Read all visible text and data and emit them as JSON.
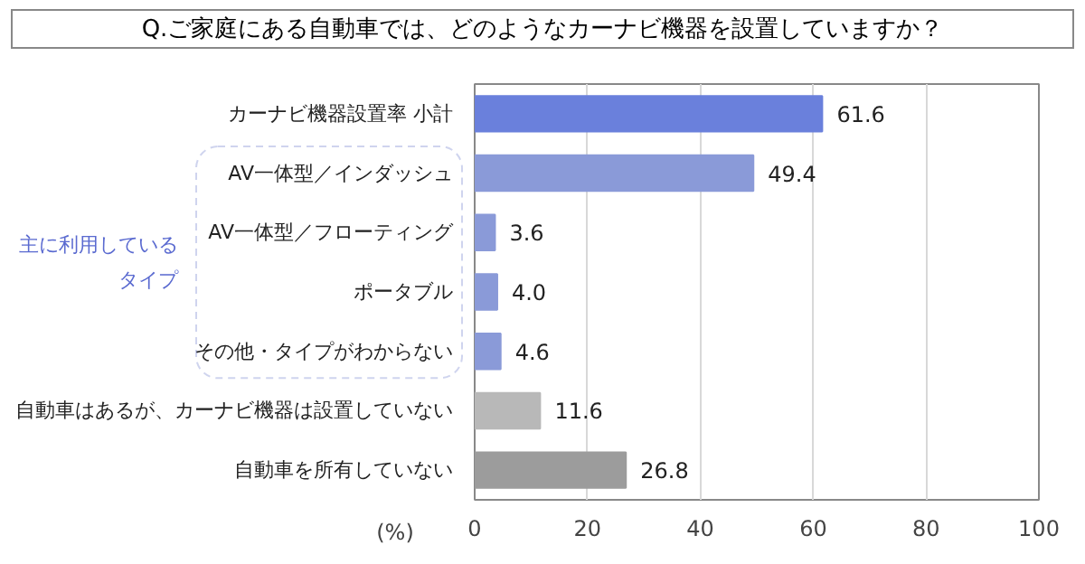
{
  "chart_data": {
    "type": "bar",
    "orientation": "horizontal",
    "title": "Q.ご家庭にある自動車では、どのようなカーナビ機器を設置していますか？",
    "categories": [
      "カーナビ機器設置率 小計",
      "AV一体型／インダッシュ",
      "AV一体型／フローティング",
      "ポータブル",
      "その他・タイプがわからない",
      "自動車はあるが、カーナビ機器は設置していない",
      "自動車を所有していない"
    ],
    "values": [
      61.6,
      49.4,
      3.6,
      4.0,
      4.6,
      11.6,
      26.8
    ],
    "colors": [
      "#6a80dc",
      "#8a9ad8",
      "#8a9ad8",
      "#8a9ad8",
      "#8a9ad8",
      "#b8b8b8",
      "#9c9c9c"
    ],
    "value_labels": [
      "61.6",
      "49.4",
      "3.6",
      "4.0",
      "4.6",
      "11.6",
      "26.8"
    ],
    "xlabel": "(%)",
    "xlim": [
      0,
      100
    ],
    "xticks": [
      0,
      20,
      40,
      60,
      80,
      100
    ],
    "grid": "x",
    "annotations": [
      "主に利用しているタイプ"
    ]
  }
}
